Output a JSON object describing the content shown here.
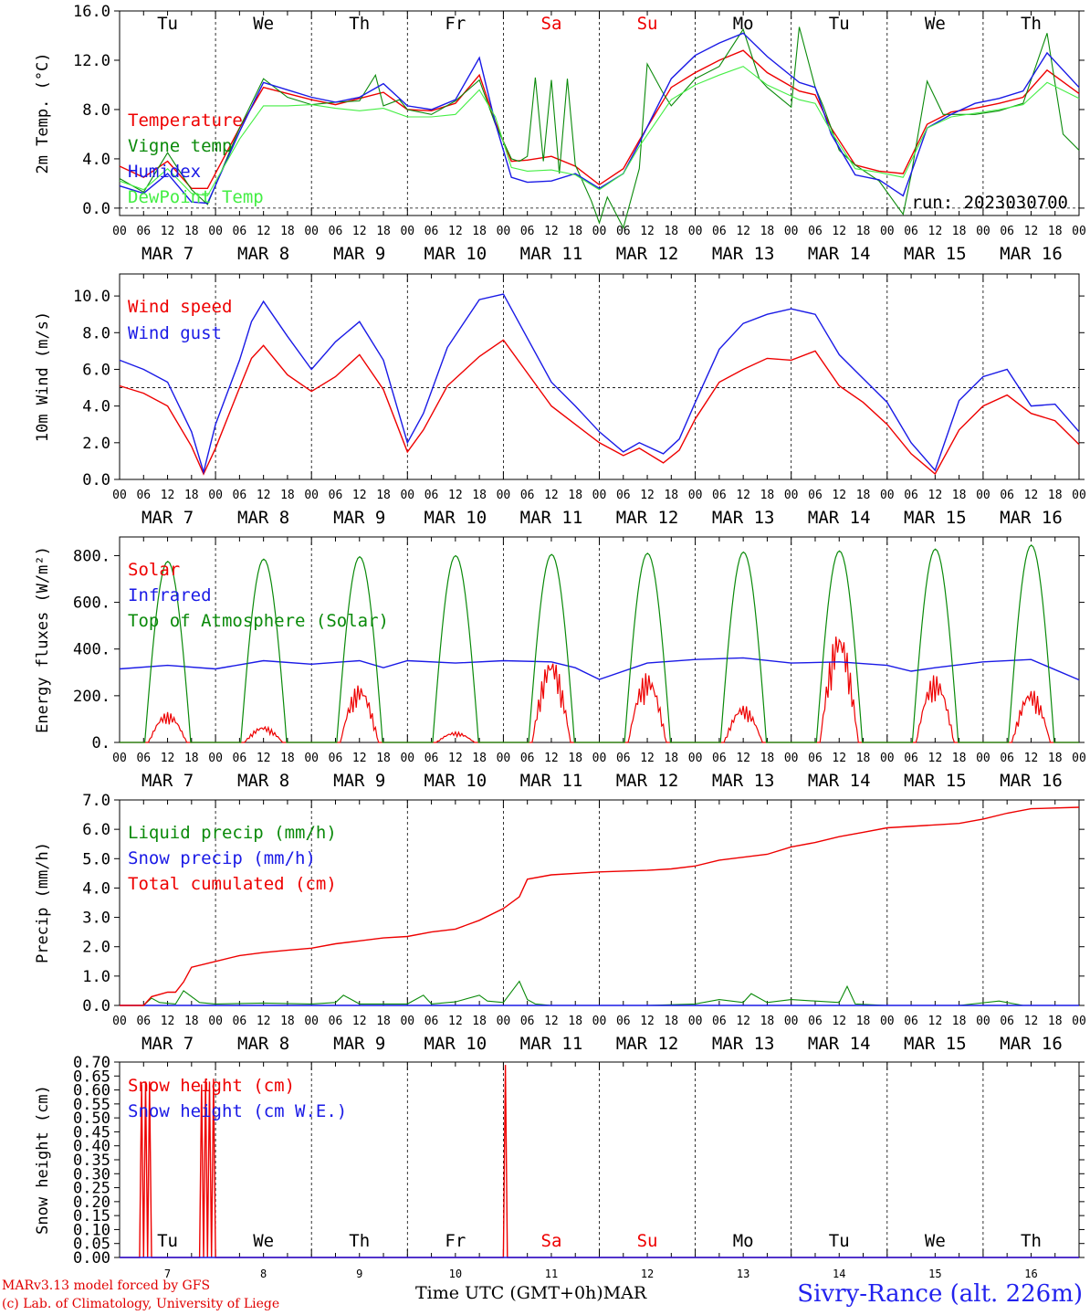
{
  "colors": {
    "red": "#ee0000",
    "green": "#0a8a0a",
    "blue": "#1a1ae6",
    "lightgreen": "#44ee44",
    "weekend": "#ee0000",
    "station": "#2222ee"
  },
  "days": {
    "dates": [
      "MAR 7",
      "MAR 8",
      "MAR 9",
      "MAR 10",
      "MAR 11",
      "MAR 12",
      "MAR 13",
      "MAR 14",
      "MAR 15",
      "MAR 16"
    ],
    "weekdays": [
      "Tu",
      "We",
      "Th",
      "Fr",
      "Sa",
      "Su",
      "Mo",
      "Tu",
      "We",
      "Th"
    ],
    "weekend_flags": [
      false,
      false,
      false,
      false,
      true,
      true,
      false,
      false,
      false,
      false
    ],
    "day_numbers": [
      "7",
      "8",
      "9",
      "10",
      "11",
      "12",
      "13",
      "14",
      "15",
      "16"
    ],
    "hour_ticks": [
      "00",
      "06",
      "12",
      "18"
    ],
    "final_tick": "00"
  },
  "footer": {
    "model_line": "MARv3.13 model forced by GFS",
    "lab_line": "(c) Lab. of Climatology, University of Liege",
    "x_axis_label": "Time UTC (GMT+0h)",
    "month": "MAR",
    "station": "Sivry-Rance (alt. 226m)"
  },
  "chart_data": [
    {
      "type": "line",
      "ylabel": "2m Temp. (°C)",
      "ylim": [
        -0.6,
        16.0
      ],
      "y_ticks": [
        0.0,
        4.0,
        8.0,
        12.0,
        16.0
      ],
      "y_tick_labels": [
        "0.0",
        "4.0",
        "8.0",
        "12.0",
        "16.0"
      ],
      "reference_line": 0.0,
      "annotation": "run: 2023030700",
      "x_unit": "hours since 2023-03-07 00 UTC",
      "series": [
        {
          "name": "Temperature",
          "color": "red",
          "x": [
            0,
            6,
            12,
            18,
            22,
            30,
            36,
            42,
            48,
            54,
            60,
            66,
            72,
            78,
            84,
            90,
            94,
            98,
            102,
            108,
            114,
            120,
            126,
            130,
            138,
            144,
            150,
            156,
            162,
            170,
            174,
            178,
            184,
            190,
            196,
            202,
            208,
            214,
            220,
            226,
            232,
            240
          ],
          "y": [
            3.4,
            2.5,
            3.8,
            1.6,
            1.6,
            6.5,
            9.8,
            9.3,
            8.8,
            8.4,
            8.9,
            9.4,
            8.0,
            7.9,
            8.5,
            10.8,
            7.0,
            3.8,
            3.9,
            4.2,
            3.4,
            1.9,
            3.2,
            5.5,
            9.8,
            11.0,
            12.0,
            12.8,
            11.0,
            9.5,
            9.2,
            6.5,
            3.5,
            3.0,
            2.8,
            6.8,
            7.8,
            8.1,
            8.5,
            9.0,
            11.2,
            9.3
          ]
        },
        {
          "name": "Vigne temp",
          "color": "green",
          "x": [
            0,
            6,
            12,
            18,
            22,
            30,
            36,
            42,
            48,
            54,
            60,
            64,
            66,
            70,
            72,
            78,
            84,
            90,
            94,
            98,
            100,
            102,
            104,
            106,
            108,
            110,
            112,
            114,
            118,
            120,
            122,
            126,
            130,
            132,
            136,
            138,
            144,
            150,
            156,
            160,
            162,
            168,
            170,
            174,
            176,
            180,
            184,
            190,
            196,
            198,
            202,
            206,
            214,
            220,
            226,
            232,
            236,
            240
          ],
          "y": [
            2.4,
            1.3,
            4.5,
            1.5,
            0.3,
            6.5,
            10.5,
            9.0,
            8.4,
            8.6,
            8.7,
            10.8,
            8.3,
            8.8,
            8.0,
            7.6,
            8.7,
            10.4,
            6.8,
            4.0,
            3.8,
            4.2,
            10.6,
            3.8,
            10.4,
            2.8,
            10.5,
            3.5,
            0.6,
            -1.2,
            0.9,
            -1.6,
            3.2,
            11.7,
            9.3,
            8.3,
            10.5,
            11.5,
            14.5,
            10.5,
            9.8,
            8.2,
            14.7,
            9.8,
            8.3,
            4.7,
            3.5,
            2.2,
            -0.5,
            2.7,
            10.3,
            7.6,
            7.6,
            7.9,
            8.5,
            14.2,
            6.0,
            4.7
          ]
        },
        {
          "name": "Humidex",
          "color": "blue",
          "x": [
            0,
            6,
            12,
            18,
            22,
            30,
            36,
            42,
            48,
            54,
            60,
            66,
            72,
            78,
            84,
            90,
            94,
            98,
            102,
            108,
            114,
            120,
            126,
            130,
            138,
            144,
            150,
            156,
            162,
            170,
            174,
            178,
            184,
            190,
            196,
            202,
            208,
            214,
            220,
            226,
            232,
            240
          ],
          "y": [
            1.8,
            1.2,
            2.8,
            0.5,
            0.4,
            6.2,
            10.2,
            9.6,
            9.0,
            8.6,
            9.0,
            10.1,
            8.3,
            8.0,
            8.8,
            12.2,
            6.9,
            2.5,
            2.1,
            2.2,
            2.8,
            1.6,
            2.8,
            5.3,
            10.5,
            12.4,
            13.4,
            14.2,
            12.3,
            10.2,
            9.8,
            6.0,
            2.7,
            2.3,
            1.0,
            6.5,
            7.6,
            8.5,
            8.9,
            9.5,
            12.6,
            9.8
          ]
        },
        {
          "name": "DewPoint Temp",
          "color": "lightgreen",
          "x": [
            0,
            6,
            12,
            18,
            22,
            30,
            36,
            42,
            48,
            54,
            60,
            66,
            72,
            78,
            84,
            90,
            94,
            98,
            102,
            108,
            114,
            120,
            126,
            130,
            138,
            144,
            150,
            156,
            162,
            170,
            174,
            178,
            184,
            190,
            196,
            202,
            208,
            214,
            220,
            226,
            232,
            240
          ],
          "y": [
            2.2,
            1.5,
            3.2,
            1.2,
            1.0,
            5.6,
            8.3,
            8.3,
            8.4,
            8.1,
            7.9,
            8.1,
            7.4,
            7.4,
            7.6,
            9.6,
            7.4,
            3.3,
            3.0,
            3.1,
            2.7,
            1.5,
            2.8,
            5.0,
            8.8,
            10.0,
            10.8,
            11.5,
            10.0,
            8.8,
            8.5,
            6.2,
            3.2,
            2.9,
            2.5,
            6.5,
            7.4,
            7.7,
            8.0,
            8.4,
            10.2,
            8.9
          ]
        }
      ]
    },
    {
      "type": "line",
      "ylabel": "10m Wind (m/s)",
      "ylim": [
        0.0,
        11.2
      ],
      "y_ticks": [
        0.0,
        2.0,
        4.0,
        6.0,
        8.0,
        10.0
      ],
      "y_tick_labels": [
        "0.0",
        "2.0",
        "4.0",
        "6.0",
        "8.0",
        "10.0"
      ],
      "reference_line": 5.0,
      "x_unit": "hours since 2023-03-07 00 UTC",
      "series": [
        {
          "name": "Wind speed",
          "color": "red",
          "x": [
            0,
            6,
            12,
            18,
            21,
            24,
            30,
            33,
            36,
            42,
            48,
            54,
            60,
            66,
            72,
            76,
            82,
            90,
            96,
            102,
            108,
            114,
            120,
            126,
            130,
            136,
            140,
            144,
            150,
            156,
            162,
            168,
            174,
            180,
            186,
            192,
            198,
            204,
            210,
            216,
            222,
            228,
            234,
            240
          ],
          "y": [
            5.1,
            4.7,
            4.0,
            1.8,
            0.3,
            1.7,
            5.0,
            6.6,
            7.3,
            5.7,
            4.8,
            5.6,
            6.8,
            4.9,
            1.5,
            2.7,
            5.1,
            6.7,
            7.6,
            5.8,
            4.0,
            3.0,
            2.0,
            1.3,
            1.7,
            0.9,
            1.6,
            3.3,
            5.3,
            6.0,
            6.6,
            6.5,
            7.0,
            5.1,
            4.2,
            3.0,
            1.4,
            0.3,
            2.7,
            4.0,
            4.6,
            3.6,
            3.2,
            1.9
          ]
        },
        {
          "name": "Wind gust",
          "color": "blue",
          "x": [
            0,
            6,
            12,
            18,
            21,
            24,
            30,
            33,
            36,
            42,
            48,
            54,
            60,
            66,
            72,
            76,
            82,
            90,
            96,
            102,
            108,
            114,
            120,
            126,
            130,
            136,
            140,
            144,
            150,
            156,
            162,
            168,
            174,
            180,
            186,
            192,
            198,
            204,
            210,
            216,
            222,
            228,
            234,
            240
          ],
          "y": [
            6.5,
            6.0,
            5.3,
            2.6,
            0.4,
            3.0,
            6.5,
            8.6,
            9.7,
            7.8,
            6.0,
            7.5,
            8.6,
            6.5,
            2.0,
            3.6,
            7.2,
            9.8,
            10.1,
            7.7,
            5.3,
            4.0,
            2.6,
            1.5,
            2.0,
            1.4,
            2.2,
            4.2,
            7.1,
            8.5,
            9.0,
            9.3,
            9.0,
            6.8,
            5.5,
            4.2,
            2.0,
            0.5,
            4.3,
            5.6,
            6.0,
            4.0,
            4.1,
            2.6
          ]
        }
      ]
    },
    {
      "type": "line",
      "ylabel": "Energy fluxes (W/m²)",
      "ylim": [
        0,
        880
      ],
      "y_ticks": [
        0,
        200,
        400,
        600,
        800
      ],
      "y_tick_labels": [
        "0.",
        "200.",
        "400.",
        "600.",
        "800."
      ],
      "x_unit": "hours since 2023-03-07 00 UTC",
      "series": [
        {
          "name": "Solar",
          "color": "red",
          "daily_peak_w_m2": [
            130,
            70,
            250,
            45,
            370,
            300,
            160,
            490,
            290,
            230
          ]
        },
        {
          "name": "Infrared",
          "color": "blue",
          "x": [
            0,
            12,
            24,
            36,
            48,
            60,
            66,
            72,
            84,
            96,
            108,
            114,
            120,
            132,
            144,
            156,
            168,
            180,
            192,
            198,
            204,
            216,
            228,
            240
          ],
          "y": [
            315,
            330,
            315,
            350,
            335,
            350,
            320,
            350,
            340,
            350,
            345,
            320,
            270,
            340,
            355,
            362,
            340,
            345,
            330,
            305,
            320,
            345,
            355,
            268
          ]
        },
        {
          "name": "Top of Atmosphere (Solar)",
          "color": "green",
          "daily_peak_w_m2": [
            775,
            785,
            795,
            800,
            805,
            810,
            815,
            820,
            828,
            845
          ]
        }
      ]
    },
    {
      "type": "line",
      "ylabel": "Precip (mm/h)",
      "ylim": [
        0.0,
        7.0
      ],
      "y_ticks": [
        0.0,
        1.0,
        2.0,
        3.0,
        4.0,
        5.0,
        6.0,
        7.0
      ],
      "y_tick_labels": [
        "0.0",
        "1.0",
        "2.0",
        "3.0",
        "4.0",
        "5.0",
        "6.0",
        "7.0"
      ],
      "x_unit": "hours since 2023-03-07 00 UTC",
      "series": [
        {
          "name": "Liquid precip (mm/h)",
          "color": "green",
          "x": [
            0,
            6,
            8,
            10,
            14,
            16,
            20,
            24,
            36,
            48,
            54,
            56,
            60,
            72,
            76,
            78,
            84,
            90,
            92,
            96,
            100,
            102,
            104,
            108,
            132,
            144,
            150,
            156,
            158,
            162,
            168,
            180,
            182,
            184,
            192,
            210,
            220,
            226,
            240
          ],
          "y": [
            0,
            0,
            0.25,
            0.1,
            0.05,
            0.5,
            0.1,
            0.05,
            0.08,
            0.05,
            0.1,
            0.35,
            0.05,
            0.05,
            0.35,
            0.05,
            0.12,
            0.35,
            0.15,
            0.1,
            0.82,
            0.2,
            0.05,
            0.0,
            0.0,
            0.05,
            0.2,
            0.1,
            0.4,
            0.1,
            0.2,
            0.1,
            0.65,
            0.05,
            0.0,
            0.0,
            0.15,
            0.0,
            0.0
          ]
        },
        {
          "name": "Snow precip (mm/h)",
          "color": "blue",
          "x": [
            0,
            240
          ],
          "y": [
            0,
            0
          ]
        },
        {
          "name": "Total cumulated (cm)",
          "color": "red",
          "x": [
            0,
            6,
            8,
            12,
            14,
            16,
            18,
            24,
            30,
            36,
            42,
            48,
            54,
            60,
            66,
            72,
            78,
            84,
            90,
            96,
            100,
            102,
            108,
            120,
            132,
            138,
            144,
            150,
            156,
            162,
            168,
            174,
            180,
            186,
            192,
            204,
            210,
            216,
            222,
            228,
            240
          ],
          "y": [
            0,
            0,
            0.3,
            0.45,
            0.45,
            0.8,
            1.3,
            1.5,
            1.7,
            1.8,
            1.88,
            1.95,
            2.1,
            2.2,
            2.3,
            2.35,
            2.5,
            2.6,
            2.9,
            3.3,
            3.7,
            4.3,
            4.45,
            4.55,
            4.6,
            4.65,
            4.75,
            4.95,
            5.05,
            5.15,
            5.4,
            5.55,
            5.75,
            5.9,
            6.05,
            6.15,
            6.2,
            6.35,
            6.55,
            6.7,
            6.75
          ]
        }
      ]
    },
    {
      "type": "line",
      "ylabel": "Snow height (cm)",
      "ylim": [
        0.0,
        0.7
      ],
      "y_ticks": [
        0.0,
        0.05,
        0.1,
        0.15,
        0.2,
        0.25,
        0.3,
        0.35,
        0.4,
        0.45,
        0.5,
        0.55,
        0.6,
        0.65,
        0.7
      ],
      "y_tick_labels": [
        "0.00",
        "0.05",
        "0.10",
        "0.15",
        "0.20",
        "0.25",
        "0.30",
        "0.35",
        "0.40",
        "0.45",
        "0.50",
        "0.55",
        "0.60",
        "0.65",
        "0.70"
      ],
      "x_unit": "hours since 2023-03-07 00 UTC",
      "series": [
        {
          "name": "Snow height (cm)",
          "color": "red",
          "x": [
            0,
            5,
            5.5,
            6,
            6.5,
            7,
            7.5,
            8,
            8.5,
            20,
            20.5,
            21,
            21.5,
            22,
            22.5,
            23,
            23.5,
            24,
            24.5,
            25,
            25.5,
            26,
            26.5,
            27,
            27.5,
            28,
            28.5,
            29,
            96,
            96.5,
            97,
            97.5,
            240
          ],
          "y": [
            0,
            0,
            0.62,
            0,
            0.63,
            0,
            0.63,
            0,
            0,
            0,
            0.62,
            0,
            0.64,
            0,
            0.63,
            0,
            0.64,
            0,
            0,
            0,
            0,
            0,
            0,
            0,
            0,
            0,
            0,
            0,
            0,
            0.69,
            0,
            0,
            0
          ]
        },
        {
          "name": "Snow height (cm W.E.)",
          "color": "blue",
          "x": [
            0,
            240
          ],
          "y": [
            0,
            0
          ]
        }
      ]
    }
  ]
}
